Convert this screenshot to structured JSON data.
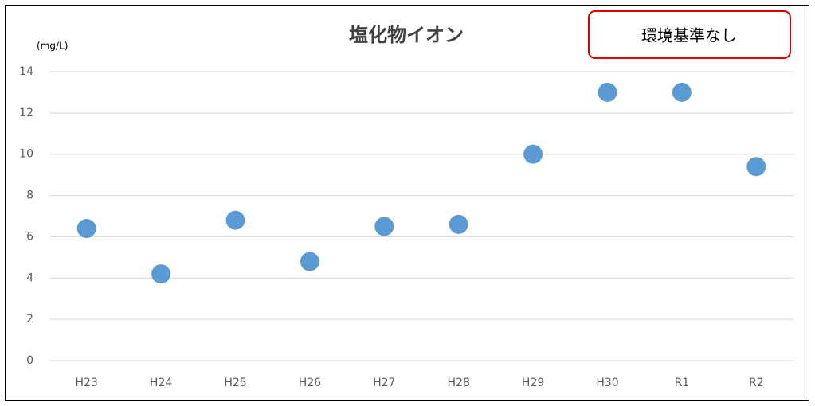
{
  "chart_data": {
    "type": "scatter",
    "title": "塩化物イオン",
    "annotation": "環境基準なし",
    "y_label": "(mg/L)",
    "categories": [
      "H23",
      "H24",
      "H25",
      "H26",
      "H27",
      "H28",
      "H29",
      "H30",
      "R1",
      "R2"
    ],
    "values": [
      6.4,
      4.2,
      6.8,
      4.8,
      6.5,
      6.6,
      10.0,
      13.0,
      13.0,
      9.4
    ],
    "color": "#5b9bd5",
    "ylim": [
      0,
      14
    ],
    "yticks": [
      0,
      2,
      4,
      6,
      8,
      10,
      12,
      14
    ],
    "grid": true
  }
}
